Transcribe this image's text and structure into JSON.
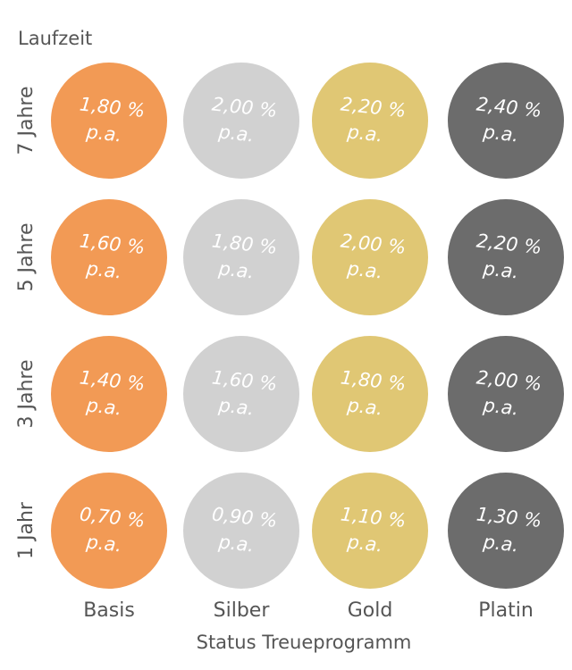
{
  "chart_data": {
    "type": "heatmap",
    "title": "",
    "ylabel": "Laufzeit",
    "xlabel": "Status Treueprogramm",
    "categories": [
      "Basis",
      "Silber",
      "Gold",
      "Platin"
    ],
    "rows": [
      "7 Jahre",
      "5 Jahre",
      "3 Jahre",
      "1 Jahr"
    ],
    "unit_suffix": "p.a.",
    "series": [
      {
        "name": "7 Jahre",
        "values": [
          1.8,
          2.0,
          2.2,
          2.4
        ],
        "labels": [
          "1,80 %",
          "2,00 %",
          "2,20 %",
          "2,40 %"
        ]
      },
      {
        "name": "5 Jahre",
        "values": [
          1.6,
          1.8,
          2.0,
          2.2
        ],
        "labels": [
          "1,60 %",
          "1,80 %",
          "2,00 %",
          "2,20 %"
        ]
      },
      {
        "name": "3 Jahre",
        "values": [
          1.4,
          1.6,
          1.8,
          2.0
        ],
        "labels": [
          "1,40 %",
          "1,60 %",
          "1,80 %",
          "2,00 %"
        ]
      },
      {
        "name": "1 Jahr",
        "values": [
          0.7,
          0.9,
          1.1,
          1.3
        ],
        "labels": [
          "0,70 %",
          "0,90 %",
          "1,10 %",
          "1,30 %"
        ]
      }
    ],
    "colors": [
      "#f29a55",
      "#d1d1d1",
      "#e0c774",
      "#6c6c6c"
    ],
    "grid": false,
    "legend": "none"
  }
}
